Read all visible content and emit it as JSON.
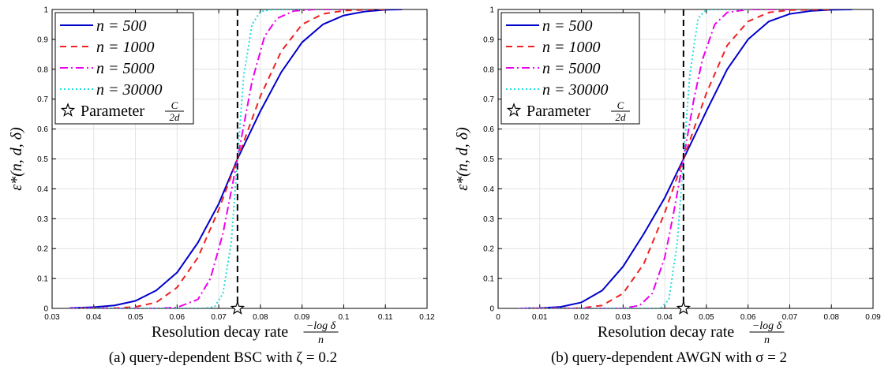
{
  "chart_data": [
    {
      "type": "line",
      "caption": "(a) query-dependent BSC with ζ = 0.2",
      "xlabel": "Resolution decay rate",
      "xlabel_math_num": "−log δ",
      "xlabel_math_den": "n",
      "ylabel": "ε*(n, d, δ)",
      "xlim": [
        0.03,
        0.12
      ],
      "ylim": [
        0,
        1
      ],
      "xticks": [
        "0.03",
        "0.04",
        "0.05",
        "0.06",
        "0.07",
        "0.08",
        "0.09",
        "0.1",
        "0.11",
        "0.12"
      ],
      "yticks": [
        "0",
        "0.1",
        "0.2",
        "0.3",
        "0.4",
        "0.5",
        "0.6",
        "0.7",
        "0.8",
        "0.9",
        "1"
      ],
      "grid": true,
      "legend_position": "top-left",
      "threshold_x": 0.0745,
      "marker": {
        "x": 0.0745,
        "y": 0,
        "label": "Parameter",
        "frac_num": "C",
        "frac_den": "2d"
      },
      "series": [
        {
          "name": "n = 500",
          "color": "#0000cc",
          "dash": "solid",
          "x": [
            0.034,
            0.04,
            0.045,
            0.05,
            0.055,
            0.06,
            0.065,
            0.07,
            0.0745,
            0.08,
            0.085,
            0.09,
            0.095,
            0.1,
            0.105,
            0.11,
            0.114
          ],
          "y": [
            0.001,
            0.004,
            0.01,
            0.025,
            0.06,
            0.12,
            0.22,
            0.35,
            0.5,
            0.66,
            0.79,
            0.89,
            0.95,
            0.98,
            0.993,
            0.999,
            1.0
          ]
        },
        {
          "name": "n = 1000",
          "color": "#ee2222",
          "dash": "8,6",
          "x": [
            0.034,
            0.045,
            0.05,
            0.055,
            0.06,
            0.065,
            0.07,
            0.0745,
            0.08,
            0.085,
            0.09,
            0.095,
            0.1,
            0.105,
            0.11
          ],
          "y": [
            0,
            0.001,
            0.005,
            0.02,
            0.07,
            0.17,
            0.33,
            0.5,
            0.71,
            0.86,
            0.95,
            0.985,
            0.996,
            0.999,
            1.0
          ]
        },
        {
          "name": "n = 5000",
          "color": "#ee00ee",
          "dash": "10,4,2,4",
          "x": [
            0.034,
            0.055,
            0.06,
            0.065,
            0.068,
            0.071,
            0.0745,
            0.078,
            0.081,
            0.084,
            0.088,
            0.093,
            0.1
          ],
          "y": [
            0,
            0,
            0.003,
            0.03,
            0.1,
            0.25,
            0.5,
            0.76,
            0.91,
            0.97,
            0.995,
            1.0,
            1.0
          ]
        },
        {
          "name": "n = 30000",
          "color": "#22dddd",
          "dash": "2,3",
          "x": [
            0.034,
            0.066,
            0.069,
            0.071,
            0.073,
            0.0745,
            0.076,
            0.078,
            0.08,
            0.083,
            0.09
          ],
          "y": [
            0,
            0,
            0.005,
            0.05,
            0.22,
            0.5,
            0.78,
            0.95,
            0.993,
            1.0,
            1.0
          ]
        }
      ]
    },
    {
      "type": "line",
      "caption": "(b) query-dependent AWGN with σ = 2",
      "xlabel": "Resolution decay rate",
      "xlabel_math_num": "−log δ",
      "xlabel_math_den": "n",
      "ylabel": "ε*(n, d, δ)",
      "xlim": [
        0,
        0.09
      ],
      "ylim": [
        0,
        1
      ],
      "xticks": [
        "0",
        "0.01",
        "0.02",
        "0.03",
        "0.04",
        "0.05",
        "0.06",
        "0.07",
        "0.08",
        "0.09"
      ],
      "yticks": [
        "0",
        "0.1",
        "0.2",
        "0.3",
        "0.4",
        "0.5",
        "0.6",
        "0.7",
        "0.8",
        "0.9",
        "1"
      ],
      "grid": true,
      "legend_position": "top-left",
      "threshold_x": 0.0445,
      "marker": {
        "x": 0.0445,
        "y": 0,
        "label": "Parameter",
        "frac_num": "C",
        "frac_den": "2d"
      },
      "series": [
        {
          "name": "n = 500",
          "color": "#0000cc",
          "dash": "solid",
          "x": [
            0.005,
            0.01,
            0.015,
            0.02,
            0.025,
            0.03,
            0.035,
            0.04,
            0.0445,
            0.05,
            0.055,
            0.06,
            0.065,
            0.07,
            0.075,
            0.08,
            0.085
          ],
          "y": [
            0,
            0.001,
            0.005,
            0.02,
            0.06,
            0.14,
            0.25,
            0.37,
            0.5,
            0.66,
            0.8,
            0.9,
            0.96,
            0.985,
            0.995,
            0.999,
            1.0
          ]
        },
        {
          "name": "n = 1000",
          "color": "#ee2222",
          "dash": "8,6",
          "x": [
            0.005,
            0.02,
            0.025,
            0.03,
            0.035,
            0.04,
            0.0445,
            0.05,
            0.055,
            0.06,
            0.065,
            0.07,
            0.08
          ],
          "y": [
            0,
            0.001,
            0.01,
            0.05,
            0.15,
            0.32,
            0.5,
            0.72,
            0.88,
            0.96,
            0.99,
            0.998,
            1.0
          ]
        },
        {
          "name": "n = 5000",
          "color": "#ee00ee",
          "dash": "10,4,2,4",
          "x": [
            0.005,
            0.03,
            0.034,
            0.037,
            0.04,
            0.042,
            0.0445,
            0.047,
            0.049,
            0.052,
            0.055,
            0.06,
            0.07
          ],
          "y": [
            0,
            0,
            0.01,
            0.05,
            0.17,
            0.31,
            0.5,
            0.7,
            0.83,
            0.95,
            0.99,
            1.0,
            1.0
          ]
        },
        {
          "name": "n = 30000",
          "color": "#22dddd",
          "dash": "2,3",
          "x": [
            0.005,
            0.039,
            0.041,
            0.043,
            0.0445,
            0.046,
            0.048,
            0.05,
            0.06
          ],
          "y": [
            0,
            0,
            0.03,
            0.22,
            0.5,
            0.78,
            0.97,
            1.0,
            1.0
          ]
        }
      ]
    }
  ]
}
